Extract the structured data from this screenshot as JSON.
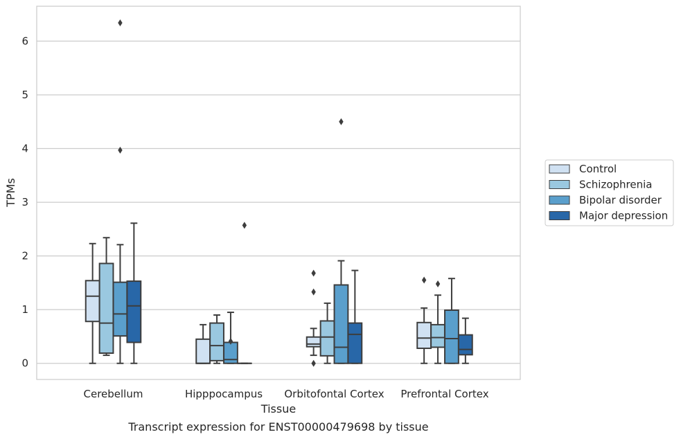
{
  "chart_data": {
    "type": "box",
    "title": "",
    "caption": "Transcript expression for ENST00000479698 by tissue",
    "xlabel": "Tissue",
    "ylabel": "TPMs",
    "ylim": [
      -0.3,
      6.65
    ],
    "yticks": [
      0,
      1,
      2,
      3,
      4,
      5,
      6
    ],
    "grid": "horizontal",
    "legend_position": "right",
    "categories": [
      "Cerebellum",
      "Hipppocampus",
      "Orbitofontal Cortex",
      "Prefrontal Cortex"
    ],
    "series": [
      {
        "name": "Control",
        "color": "#d0e1f2",
        "boxes": [
          {
            "q1": 0.78,
            "median": 1.25,
            "q3": 1.54,
            "whisker_low": 0.0,
            "whisker_high": 2.23,
            "outliers": []
          },
          {
            "q1": 0.0,
            "median": 0.0,
            "q3": 0.45,
            "whisker_low": 0.0,
            "whisker_high": 0.72,
            "outliers": []
          },
          {
            "q1": 0.31,
            "median": 0.36,
            "q3": 0.49,
            "whisker_low": 0.15,
            "whisker_high": 0.65,
            "outliers": [
              1.68,
              1.33,
              0.0
            ]
          },
          {
            "q1": 0.28,
            "median": 0.47,
            "q3": 0.76,
            "whisker_low": 0.0,
            "whisker_high": 1.03,
            "outliers": [
              1.55
            ]
          }
        ]
      },
      {
        "name": "Schizophrenia",
        "color": "#9ac8e0",
        "boxes": [
          {
            "q1": 0.19,
            "median": 0.75,
            "q3": 1.86,
            "whisker_low": 0.15,
            "whisker_high": 2.34,
            "outliers": []
          },
          {
            "q1": 0.05,
            "median": 0.33,
            "q3": 0.75,
            "whisker_low": 0.0,
            "whisker_high": 0.9,
            "outliers": []
          },
          {
            "q1": 0.14,
            "median": 0.49,
            "q3": 0.79,
            "whisker_low": 0.0,
            "whisker_high": 1.12,
            "outliers": []
          },
          {
            "q1": 0.3,
            "median": 0.48,
            "q3": 0.72,
            "whisker_low": 0.0,
            "whisker_high": 1.27,
            "outliers": [
              1.48
            ]
          }
        ]
      },
      {
        "name": "Bipolar disorder",
        "color": "#5a9fcc",
        "boxes": [
          {
            "q1": 0.51,
            "median": 0.92,
            "q3": 1.51,
            "whisker_low": 0.0,
            "whisker_high": 2.21,
            "outliers": [
              6.34,
              3.97
            ]
          },
          {
            "q1": 0.0,
            "median": 0.07,
            "q3": 0.39,
            "whisker_low": 0.0,
            "whisker_high": 0.95,
            "outliers": [
              0.41
            ]
          },
          {
            "q1": 0.0,
            "median": 0.3,
            "q3": 1.46,
            "whisker_low": 0.0,
            "whisker_high": 1.91,
            "outliers": [
              4.5
            ]
          },
          {
            "q1": 0.0,
            "median": 0.46,
            "q3": 0.99,
            "whisker_low": 0.0,
            "whisker_high": 1.58,
            "outliers": []
          }
        ]
      },
      {
        "name": "Major depression",
        "color": "#2867a8",
        "boxes": [
          {
            "q1": 0.39,
            "median": 1.07,
            "q3": 1.53,
            "whisker_low": 0.0,
            "whisker_high": 2.61,
            "outliers": []
          },
          {
            "q1": 0.0,
            "median": 0.0,
            "q3": 0.0,
            "whisker_low": 0.0,
            "whisker_high": 0.0,
            "outliers": [
              2.57
            ]
          },
          {
            "q1": 0.0,
            "median": 0.54,
            "q3": 0.75,
            "whisker_low": 0.0,
            "whisker_high": 1.73,
            "outliers": []
          },
          {
            "q1": 0.16,
            "median": 0.26,
            "q3": 0.53,
            "whisker_low": 0.0,
            "whisker_high": 0.84,
            "outliers": []
          }
        ]
      }
    ]
  }
}
